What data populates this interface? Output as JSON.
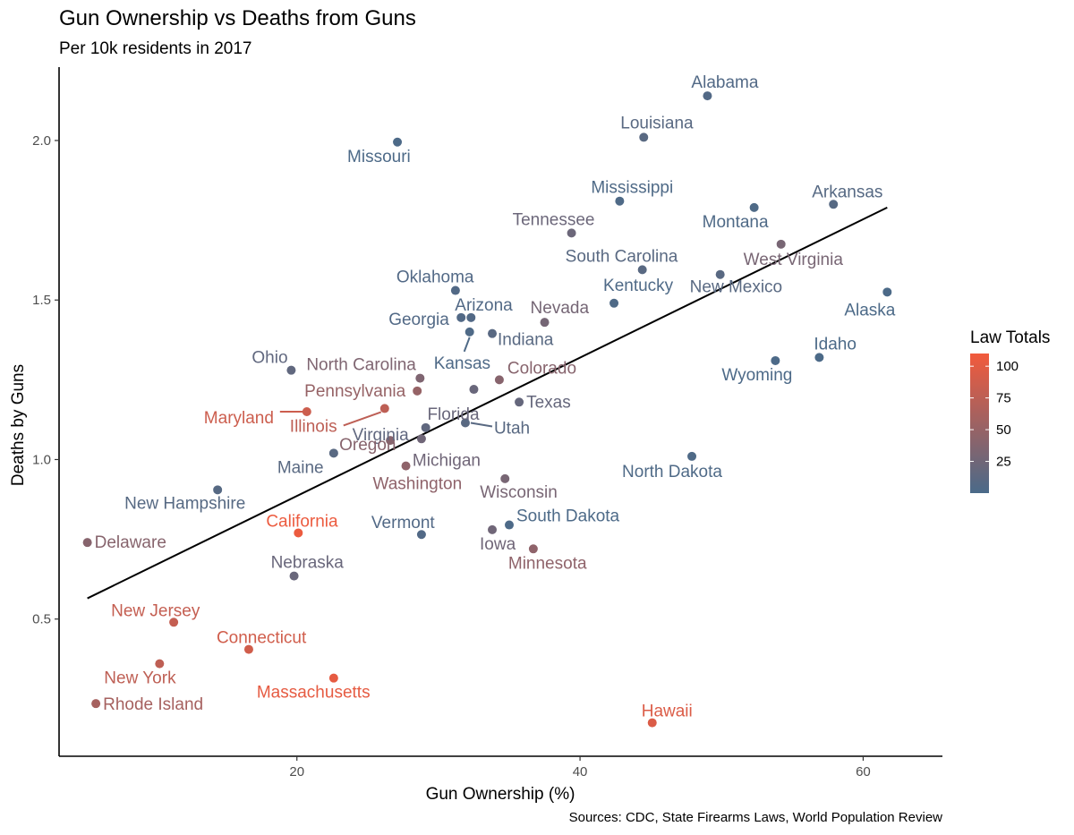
{
  "chart_data": {
    "type": "scatter",
    "title": "Gun Ownership vs Deaths from Guns",
    "subtitle": "Per 10k residents in 2017",
    "xlabel": "Gun Ownership (%)",
    "ylabel": "Deaths by Guns",
    "caption": "Sources: CDC, State Firearms Laws, World Population Review",
    "xlim": [
      3.2,
      65.6
    ],
    "ylim": [
      0.07,
      2.23
    ],
    "x_ticks": [
      20,
      40,
      60
    ],
    "y_ticks": [
      0.5,
      1.0,
      1.5,
      2.0
    ],
    "y_tick_labels": [
      "0.5",
      "1.0",
      "1.5",
      "2.0"
    ],
    "trend_line": {
      "x": [
        5.2,
        61.7
      ],
      "y": [
        0.565,
        1.79
      ],
      "color": "#000000"
    },
    "legend": {
      "title": "Law Totals",
      "min": 0,
      "max": 110,
      "ticks": [
        25,
        50,
        75,
        100
      ],
      "low_color": "#4a6a89",
      "high_color": "#f25a3c",
      "placement": "right"
    },
    "points": [
      {
        "label": "Alabama",
        "x": 49.0,
        "y": 2.14,
        "law": 5
      },
      {
        "label": "Louisiana",
        "x": 44.5,
        "y": 2.01,
        "law": 10
      },
      {
        "label": "Missouri",
        "x": 27.1,
        "y": 1.995,
        "law": 2
      },
      {
        "label": "Mississippi",
        "x": 42.8,
        "y": 1.81,
        "law": 3
      },
      {
        "label": "Arkansas",
        "x": 57.9,
        "y": 1.8,
        "law": 8
      },
      {
        "label": "Montana",
        "x": 52.3,
        "y": 1.79,
        "law": 3
      },
      {
        "label": "Tennessee",
        "x": 39.4,
        "y": 1.71,
        "law": 22
      },
      {
        "label": "West Virginia",
        "x": 54.2,
        "y": 1.675,
        "law": 30
      },
      {
        "label": "South Carolina",
        "x": 44.4,
        "y": 1.595,
        "law": 10
      },
      {
        "label": "New Mexico",
        "x": 49.9,
        "y": 1.58,
        "law": 10
      },
      {
        "label": "Oklahoma",
        "x": 31.2,
        "y": 1.53,
        "law": 5
      },
      {
        "label": "Alaska",
        "x": 61.7,
        "y": 1.525,
        "law": 1
      },
      {
        "label": "Kentucky",
        "x": 42.4,
        "y": 1.49,
        "law": 3
      },
      {
        "label": "Arizona",
        "x": 32.3,
        "y": 1.445,
        "law": 5
      },
      {
        "label": "Nevada",
        "x": 37.5,
        "y": 1.43,
        "law": 28
      },
      {
        "label": "Georgia",
        "x": 31.6,
        "y": 1.445,
        "law": 5
      },
      {
        "label": "Kansas",
        "x": 32.2,
        "y": 1.4,
        "law": 3
      },
      {
        "label": "Indiana",
        "x": 33.8,
        "y": 1.395,
        "law": 10
      },
      {
        "label": "Ohio",
        "x": 19.6,
        "y": 1.28,
        "law": 15
      },
      {
        "label": "North Carolina",
        "x": 28.7,
        "y": 1.255,
        "law": 35
      },
      {
        "label": "Idaho",
        "x": 56.9,
        "y": 1.32,
        "law": 1
      },
      {
        "label": "Wyoming",
        "x": 53.8,
        "y": 1.31,
        "law": 2
      },
      {
        "label": "Colorado",
        "x": 34.3,
        "y": 1.25,
        "law": 40
      },
      {
        "label": "Pennsylvania",
        "x": 28.5,
        "y": 1.215,
        "law": 50
      },
      {
        "label": "Florida",
        "x": 32.5,
        "y": 1.22,
        "law": 20
      },
      {
        "label": "Texas",
        "x": 35.7,
        "y": 1.18,
        "law": 18
      },
      {
        "label": "Maryland",
        "x": 20.7,
        "y": 1.15,
        "law": 85
      },
      {
        "label": "Illinois",
        "x": 26.2,
        "y": 1.16,
        "law": 75
      },
      {
        "label": "Utah",
        "x": 31.9,
        "y": 1.115,
        "law": 10
      },
      {
        "label": "Virginia",
        "x": 29.1,
        "y": 1.1,
        "law": 15
      },
      {
        "label": "Michigan",
        "x": 28.8,
        "y": 1.065,
        "law": 25
      },
      {
        "label": "Oregon",
        "x": 26.6,
        "y": 1.06,
        "law": 40
      },
      {
        "label": "Maine",
        "x": 22.6,
        "y": 1.02,
        "law": 10
      },
      {
        "label": "Washington",
        "x": 27.7,
        "y": 0.98,
        "law": 45
      },
      {
        "label": "North Dakota",
        "x": 47.9,
        "y": 1.01,
        "law": 3
      },
      {
        "label": "Wisconsin",
        "x": 34.7,
        "y": 0.94,
        "law": 30
      },
      {
        "label": "New Hampshire",
        "x": 14.4,
        "y": 0.905,
        "law": 8
      },
      {
        "label": "California",
        "x": 20.1,
        "y": 0.77,
        "law": 106
      },
      {
        "label": "Vermont",
        "x": 28.8,
        "y": 0.765,
        "law": 5
      },
      {
        "label": "South Dakota",
        "x": 35.0,
        "y": 0.795,
        "law": 2
      },
      {
        "label": "Iowa",
        "x": 33.8,
        "y": 0.78,
        "law": 25
      },
      {
        "label": "Delaware",
        "x": 5.2,
        "y": 0.74,
        "law": 40
      },
      {
        "label": "Minnesota",
        "x": 36.7,
        "y": 0.72,
        "law": 45
      },
      {
        "label": "Nebraska",
        "x": 19.8,
        "y": 0.635,
        "law": 20
      },
      {
        "label": "New Jersey",
        "x": 11.3,
        "y": 0.49,
        "law": 80
      },
      {
        "label": "Connecticut",
        "x": 16.6,
        "y": 0.405,
        "law": 88
      },
      {
        "label": "New York",
        "x": 10.3,
        "y": 0.36,
        "law": 76
      },
      {
        "label": "Massachusetts",
        "x": 22.6,
        "y": 0.315,
        "law": 102
      },
      {
        "label": "Rhode Island",
        "x": 5.8,
        "y": 0.235,
        "law": 60
      },
      {
        "label": "Hawaii",
        "x": 45.1,
        "y": 0.175,
        "law": 95
      }
    ]
  }
}
